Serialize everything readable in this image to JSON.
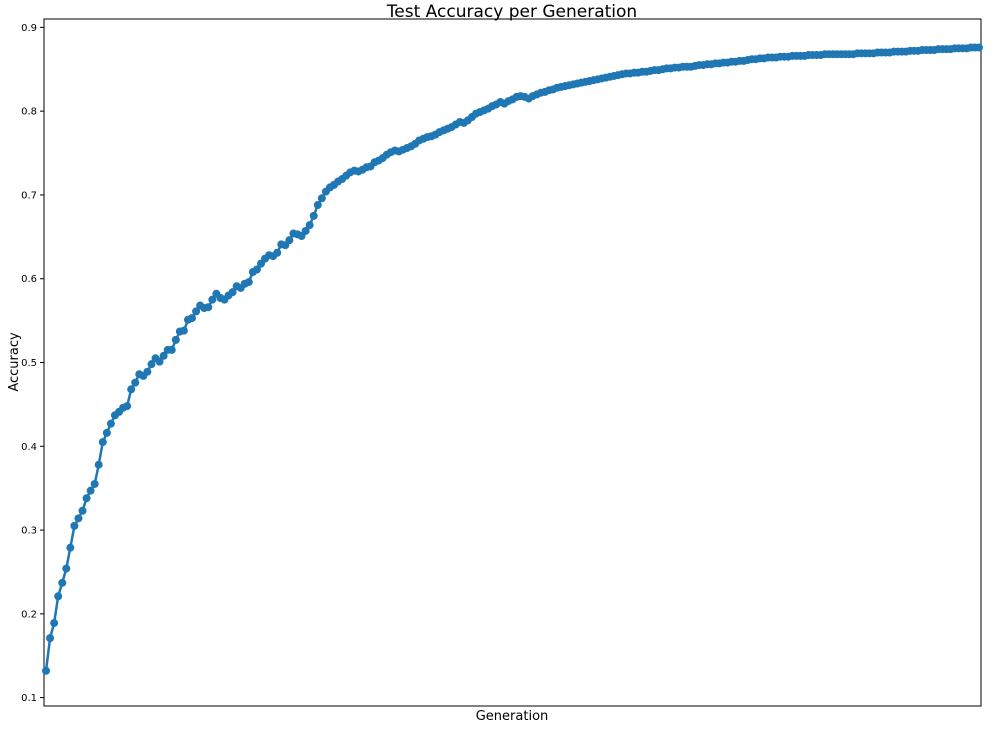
{
  "chart_data": {
    "type": "line",
    "title": "Test Accuracy per Generation",
    "xlabel": "Generation",
    "ylabel": "Accuracy",
    "ylim": [
      0.09,
      0.91
    ],
    "yticks": [
      0.1,
      0.2,
      0.3,
      0.4,
      0.5,
      0.6,
      0.7,
      0.8,
      0.9
    ],
    "ytick_labels": [
      "0.1",
      "0.2",
      "0.3",
      "0.4",
      "0.5",
      "0.6",
      "0.7",
      "0.8",
      "0.9"
    ],
    "x_ticks_visible": false,
    "grid": false,
    "markers": true,
    "series_color": "#1f77b4",
    "series": [
      {
        "name": "",
        "values": [
          0.132,
          0.171,
          0.189,
          0.221,
          0.237,
          0.254,
          0.279,
          0.305,
          0.314,
          0.323,
          0.338,
          0.347,
          0.355,
          0.378,
          0.405,
          0.416,
          0.427,
          0.437,
          0.441,
          0.446,
          0.448,
          0.468,
          0.476,
          0.486,
          0.484,
          0.489,
          0.498,
          0.505,
          0.501,
          0.508,
          0.515,
          0.515,
          0.527,
          0.537,
          0.538,
          0.551,
          0.553,
          0.561,
          0.568,
          0.565,
          0.566,
          0.575,
          0.582,
          0.577,
          0.575,
          0.58,
          0.584,
          0.591,
          0.589,
          0.594,
          0.596,
          0.608,
          0.611,
          0.618,
          0.624,
          0.628,
          0.627,
          0.631,
          0.641,
          0.64,
          0.646,
          0.654,
          0.653,
          0.651,
          0.657,
          0.664,
          0.675,
          0.688,
          0.696,
          0.704,
          0.709,
          0.712,
          0.716,
          0.719,
          0.723,
          0.727,
          0.729,
          0.728,
          0.73,
          0.733,
          0.734,
          0.739,
          0.741,
          0.744,
          0.748,
          0.751,
          0.753,
          0.752,
          0.754,
          0.756,
          0.758,
          0.761,
          0.765,
          0.767,
          0.769,
          0.77,
          0.772,
          0.775,
          0.777,
          0.779,
          0.781,
          0.784,
          0.787,
          0.786,
          0.789,
          0.793,
          0.797,
          0.799,
          0.801,
          0.803,
          0.806,
          0.808,
          0.811,
          0.809,
          0.812,
          0.814,
          0.817,
          0.818,
          0.817,
          0.815,
          0.818,
          0.82,
          0.822,
          0.823,
          0.825,
          0.826,
          0.828,
          0.829,
          0.83,
          0.831,
          0.832,
          0.833,
          0.834,
          0.835,
          0.836,
          0.837,
          0.838,
          0.839,
          0.84,
          0.841,
          0.842,
          0.843,
          0.844,
          0.845,
          0.845,
          0.846,
          0.846,
          0.847,
          0.847,
          0.848,
          0.849,
          0.849,
          0.85,
          0.851,
          0.851,
          0.852,
          0.852,
          0.853,
          0.853,
          0.853,
          0.854,
          0.855,
          0.855,
          0.856,
          0.856,
          0.857,
          0.857,
          0.858,
          0.858,
          0.859,
          0.859,
          0.86,
          0.86,
          0.861,
          0.862,
          0.862,
          0.863,
          0.863,
          0.864,
          0.864,
          0.864,
          0.865,
          0.865,
          0.865,
          0.866,
          0.866,
          0.866,
          0.866,
          0.867,
          0.867,
          0.867,
          0.867,
          0.868,
          0.868,
          0.868,
          0.868,
          0.868,
          0.868,
          0.868,
          0.868,
          0.869,
          0.869,
          0.869,
          0.869,
          0.869,
          0.87,
          0.87,
          0.87,
          0.87,
          0.871,
          0.871,
          0.871,
          0.871,
          0.872,
          0.872,
          0.872,
          0.873,
          0.873,
          0.873,
          0.873,
          0.874,
          0.874,
          0.874,
          0.874,
          0.875,
          0.875,
          0.875,
          0.875,
          0.876,
          0.876,
          0.876
        ]
      }
    ]
  }
}
